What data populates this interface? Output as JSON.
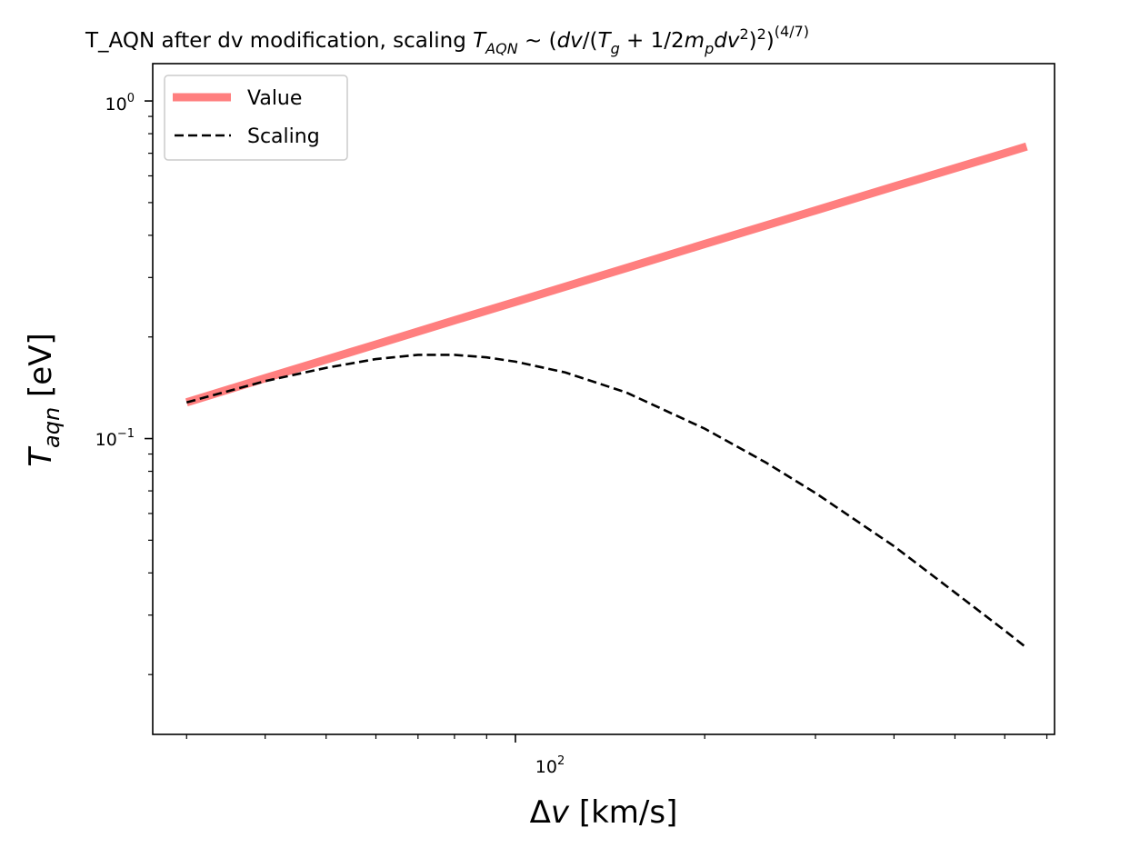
{
  "chart_data": {
    "type": "line",
    "title": "T_AQN after dv modification, scaling",
    "title_formula": {
      "T": "T",
      "aqn_sub": "AQN",
      "sim": " ~ (",
      "dv": "dv",
      "slash": "/(",
      "Tg": "T",
      "g_sub": "g",
      "plus": " + 1/2",
      "m": "m",
      "p_sub": "p",
      "dv2": "dv",
      "sq1": "2",
      "close": ")",
      "sq2": "2",
      "close2": ")",
      "exp": "(4/7)"
    },
    "xlabel": {
      "delta": "Δ",
      "v": "v",
      "unit": " [km/s]"
    },
    "ylabel": {
      "T": "T",
      "sub": "aqn",
      "unit": " [eV]"
    },
    "x_scale": "log",
    "y_scale": "log",
    "xlim": [
      26.5,
      720
    ],
    "ylim": [
      0.0133,
      1.29
    ],
    "x_ticks": [
      {
        "value": 100,
        "base": "10",
        "exp": "2"
      }
    ],
    "y_ticks": [
      {
        "value": 1,
        "base": "10",
        "exp": "0"
      },
      {
        "value": 0.1,
        "base": "10",
        "exp": "−1"
      }
    ],
    "grid": false,
    "legend_position": "upper-left",
    "series": [
      {
        "name": "Value",
        "color": "#ff7f7f",
        "style": "solid",
        "x": [
          30,
          40,
          60,
          80,
          100,
          150,
          200,
          300,
          400,
          500,
          600,
          650
        ],
        "y": [
          0.128,
          0.151,
          0.19,
          0.224,
          0.254,
          0.32,
          0.377,
          0.474,
          0.558,
          0.632,
          0.7,
          0.733
        ]
      },
      {
        "name": "Scaling",
        "color": "#000000",
        "style": "dashed",
        "x": [
          30,
          40,
          50,
          60,
          70,
          80,
          90,
          100,
          120,
          150,
          200,
          250,
          300,
          400,
          500,
          600,
          650
        ],
        "y": [
          0.128,
          0.148,
          0.162,
          0.172,
          0.177,
          0.177,
          0.174,
          0.169,
          0.157,
          0.137,
          0.107,
          0.085,
          0.069,
          0.048,
          0.035,
          0.027,
          0.024
        ]
      }
    ]
  }
}
